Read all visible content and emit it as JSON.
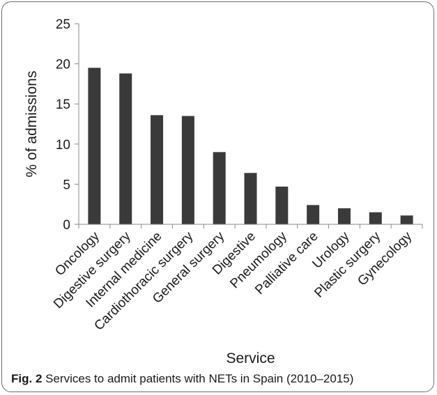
{
  "chart_data": {
    "type": "bar",
    "categories": [
      "Oncology",
      "Digestive surgery",
      "Internal medicine",
      "Cardiothoracic surgery",
      "General surgery",
      "Digestive",
      "Pneumology",
      "Palliative care",
      "Urology",
      "Plastic surgery",
      "Gynecology"
    ],
    "values": [
      19.5,
      18.8,
      13.6,
      13.5,
      9.0,
      6.4,
      4.7,
      2.4,
      2.0,
      1.5,
      1.1
    ],
    "xlabel": "Service",
    "ylabel": "% of admissions",
    "ylim": [
      0,
      25
    ],
    "yticks": [
      0,
      5,
      10,
      15,
      20,
      25
    ],
    "bar_color": "#3a3a3a",
    "grid": false,
    "legend": "none"
  },
  "caption": {
    "label": "Fig. 2",
    "text": " Services to admit patients with NETs in Spain (2010–2015)"
  }
}
